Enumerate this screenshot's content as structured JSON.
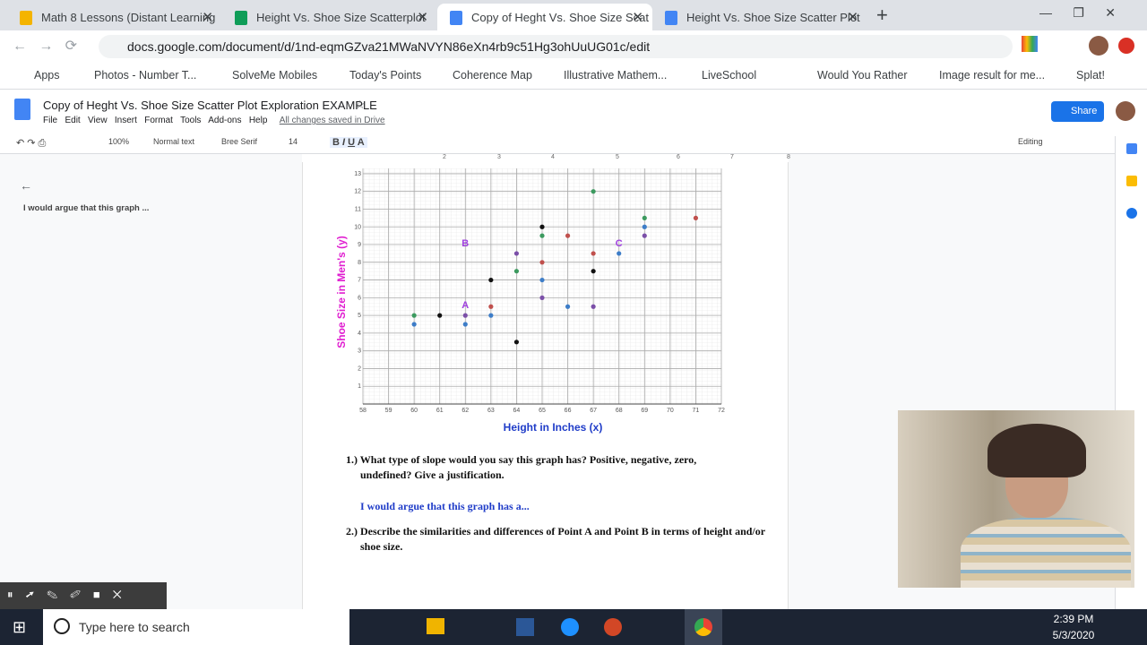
{
  "tabs": [
    "Math 8 Lessons (Distant Learning",
    "Height Vs. Shoe Size Scatterplot",
    "Copy of Heght Vs. Shoe Size Scat",
    "Height Vs. Shoe Size Scatter Plot"
  ],
  "address": "docs.google.com/document/d/1nd-eqmGZva21MWaNVYN86eXn4rb9c51Hg3ohUuUG01c/edit",
  "bookmarks": [
    "Apps",
    "Photos - Number T...",
    "SolveMe Mobiles",
    "Today's Points",
    "Coherence Map",
    "Illustrative Mathem...",
    "LiveSchool",
    "Would You Rather",
    "Image result for me...",
    "Splat!"
  ],
  "doc": {
    "title": "Copy of Heght Vs. Shoe Size Scatter Plot Exploration EXAMPLE",
    "menu": [
      "File",
      "Edit",
      "View",
      "Insert",
      "Format",
      "Tools",
      "Add-ons",
      "Help"
    ],
    "save_status": "All changes saved in Drive",
    "share": "Share"
  },
  "toolbar": {
    "zoom": "100%",
    "style": "Normal text",
    "font": "Bree Serif",
    "size": "14",
    "mode": "Editing"
  },
  "ruler": [
    "2",
    "3",
    "4",
    "5",
    "6",
    "7",
    "8"
  ],
  "outline": {
    "item": "I would argue that this graph ..."
  },
  "chart": {
    "type": "scatter",
    "x_label": "Height in Inches (x)",
    "y_label": "Shoe Size in Men's (y)",
    "xlim": [
      58,
      72
    ],
    "ylim": [
      0,
      13.3
    ],
    "xticks": [
      58,
      59,
      60,
      61,
      62,
      63,
      64,
      65,
      66,
      67,
      68,
      69,
      70,
      71,
      72
    ],
    "yticks": [
      1,
      2,
      3,
      4,
      5,
      6,
      7,
      8,
      9,
      10,
      11,
      12,
      13
    ],
    "points": [
      {
        "x": 60,
        "y": 5,
        "color": "#3c9a5f"
      },
      {
        "x": 60,
        "y": 4.5,
        "color": "#3d7dc8"
      },
      {
        "x": 61,
        "y": 5,
        "color": "#111111"
      },
      {
        "x": 62,
        "y": 5,
        "color": "#7b4fa8"
      },
      {
        "x": 62,
        "y": 4.5,
        "color": "#3d7dc8"
      },
      {
        "x": 63,
        "y": 5.5,
        "color": "#c0504d"
      },
      {
        "x": 63,
        "y": 5,
        "color": "#3d7dc8"
      },
      {
        "x": 63,
        "y": 7,
        "color": "#111111"
      },
      {
        "x": 64,
        "y": 3.5,
        "color": "#111111"
      },
      {
        "x": 64,
        "y": 8.5,
        "color": "#7b4fa8"
      },
      {
        "x": 64,
        "y": 7.5,
        "color": "#3c9a5f"
      },
      {
        "x": 65,
        "y": 10,
        "color": "#111111"
      },
      {
        "x": 65,
        "y": 9.5,
        "color": "#3c9a5f"
      },
      {
        "x": 65,
        "y": 8,
        "color": "#c0504d"
      },
      {
        "x": 65,
        "y": 7,
        "color": "#3d7dc8"
      },
      {
        "x": 65,
        "y": 6,
        "color": "#7b4fa8"
      },
      {
        "x": 66,
        "y": 5.5,
        "color": "#3d7dc8"
      },
      {
        "x": 66,
        "y": 9.5,
        "color": "#c0504d"
      },
      {
        "x": 67,
        "y": 12,
        "color": "#3c9a5f"
      },
      {
        "x": 67,
        "y": 8.5,
        "color": "#c0504d"
      },
      {
        "x": 67,
        "y": 7.5,
        "color": "#111111"
      },
      {
        "x": 67,
        "y": 5.5,
        "color": "#7b4fa8"
      },
      {
        "x": 68,
        "y": 8.5,
        "color": "#3d7dc8"
      },
      {
        "x": 69,
        "y": 10.5,
        "color": "#3c9a5f"
      },
      {
        "x": 69,
        "y": 10,
        "color": "#3d7dc8"
      },
      {
        "x": 69,
        "y": 9.5,
        "color": "#7b4fa8"
      },
      {
        "x": 71,
        "y": 10.5,
        "color": "#c0504d"
      }
    ],
    "annotations": [
      {
        "label": "A",
        "x": 62,
        "y": 5.5
      },
      {
        "label": "B",
        "x": 62,
        "y": 9
      },
      {
        "label": "C",
        "x": 68,
        "y": 9
      }
    ]
  },
  "questions": [
    {
      "number": "1.)",
      "text": "What type of slope would you say this graph has?  Positive, negative, zero, undefined?  Give a justification.",
      "answer": "I would argue that this graph has a..."
    },
    {
      "number": "2.)",
      "text": "Describe the similarities and differences of Point A and Point B in terms of height and/or shoe size."
    }
  ],
  "taskbar": {
    "search": "Type here to search",
    "time": "2:39 PM",
    "date": "5/3/2020"
  }
}
